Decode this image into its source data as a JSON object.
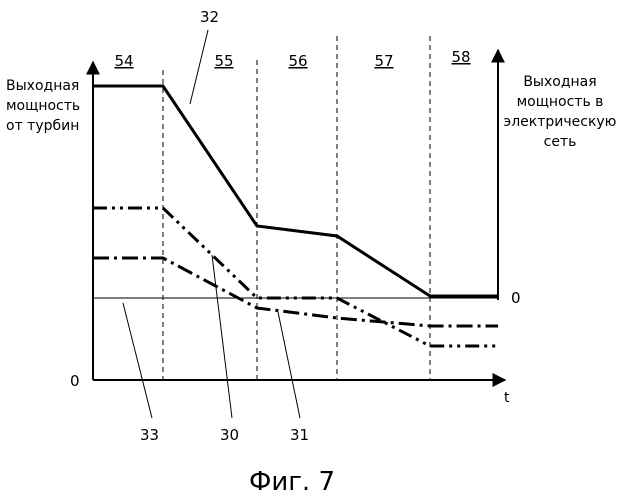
{
  "left_axis_label": [
    "Выходная",
    "мощность",
    "от турбин"
  ],
  "right_axis_label": [
    "Выходная",
    "мощность в",
    "электрическую",
    "сеть"
  ],
  "zero_left": "0",
  "zero_right": "0",
  "t_label": "t",
  "periods": [
    "54",
    "55",
    "56",
    "57",
    "58"
  ],
  "ref_32": "32",
  "ref_33": "33",
  "ref_30": "30",
  "ref_31": "31",
  "caption": "Фиг. 7"
}
